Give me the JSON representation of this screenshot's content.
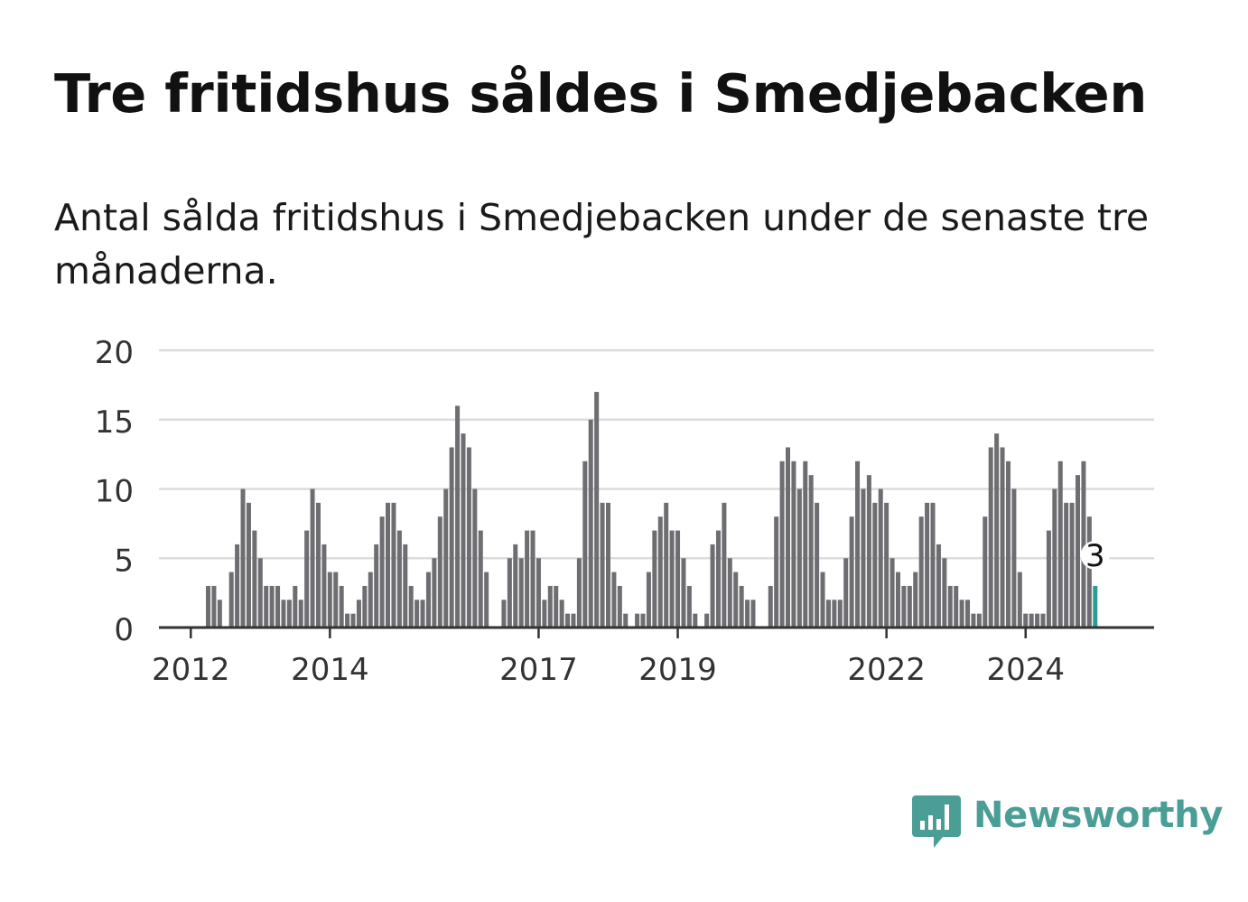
{
  "header": {
    "title": "Tre fritidshus såldes i Smedjebacken",
    "subtitle": "Antal sålda fritidshus i Smedjebacken under de senaste tre månaderna."
  },
  "brand": {
    "name": "Newsworthy",
    "color": "#4a9e96"
  },
  "chart_data": {
    "type": "bar",
    "title": "",
    "xlabel": "",
    "ylabel": "",
    "ylim": [
      0,
      20
    ],
    "yticks": [
      0,
      5,
      10,
      15,
      20
    ],
    "xtick_labels": [
      "2012",
      "2014",
      "2017",
      "2019",
      "2022",
      "2024"
    ],
    "bar_color": "#6e6e72",
    "highlight_color": "#2a9d95",
    "grid": true,
    "start_period": "2011-08",
    "end_period": "2024-12",
    "series": [
      {
        "values": [
          0,
          0,
          0,
          0,
          0,
          0,
          0,
          0,
          3,
          3,
          2,
          0,
          4,
          6,
          10,
          9,
          7,
          5,
          3,
          3,
          3,
          2,
          2,
          3,
          2,
          7,
          10,
          9,
          6,
          4,
          4,
          3,
          1,
          1,
          2,
          3,
          4,
          6,
          8,
          9,
          9,
          7,
          6,
          3,
          2,
          2,
          4,
          5,
          8,
          10,
          13,
          16,
          14,
          13,
          10,
          7,
          4,
          0,
          0,
          2,
          5,
          6,
          5,
          7,
          7,
          5,
          2,
          3,
          3,
          2,
          1,
          1,
          5,
          12,
          15,
          17,
          9,
          9,
          4,
          3,
          1,
          0,
          1,
          1,
          4,
          7,
          8,
          9,
          7,
          7,
          5,
          3,
          1,
          0,
          1,
          6,
          7,
          9,
          5,
          4,
          3,
          2,
          2,
          0,
          0,
          3,
          8,
          12,
          13,
          12,
          10,
          12,
          11,
          9,
          4,
          2,
          2,
          2,
          5,
          8,
          12,
          10,
          11,
          9,
          10,
          9,
          5,
          4,
          3,
          3,
          4,
          8,
          9,
          9,
          6,
          5,
          3,
          3,
          2,
          2,
          1,
          1,
          8,
          13,
          14,
          13,
          12,
          10,
          4,
          1,
          1,
          1,
          1,
          7,
          10,
          12,
          9,
          9,
          11,
          12,
          8,
          3
        ]
      }
    ],
    "annotation": {
      "label": "3",
      "value": 3
    }
  }
}
